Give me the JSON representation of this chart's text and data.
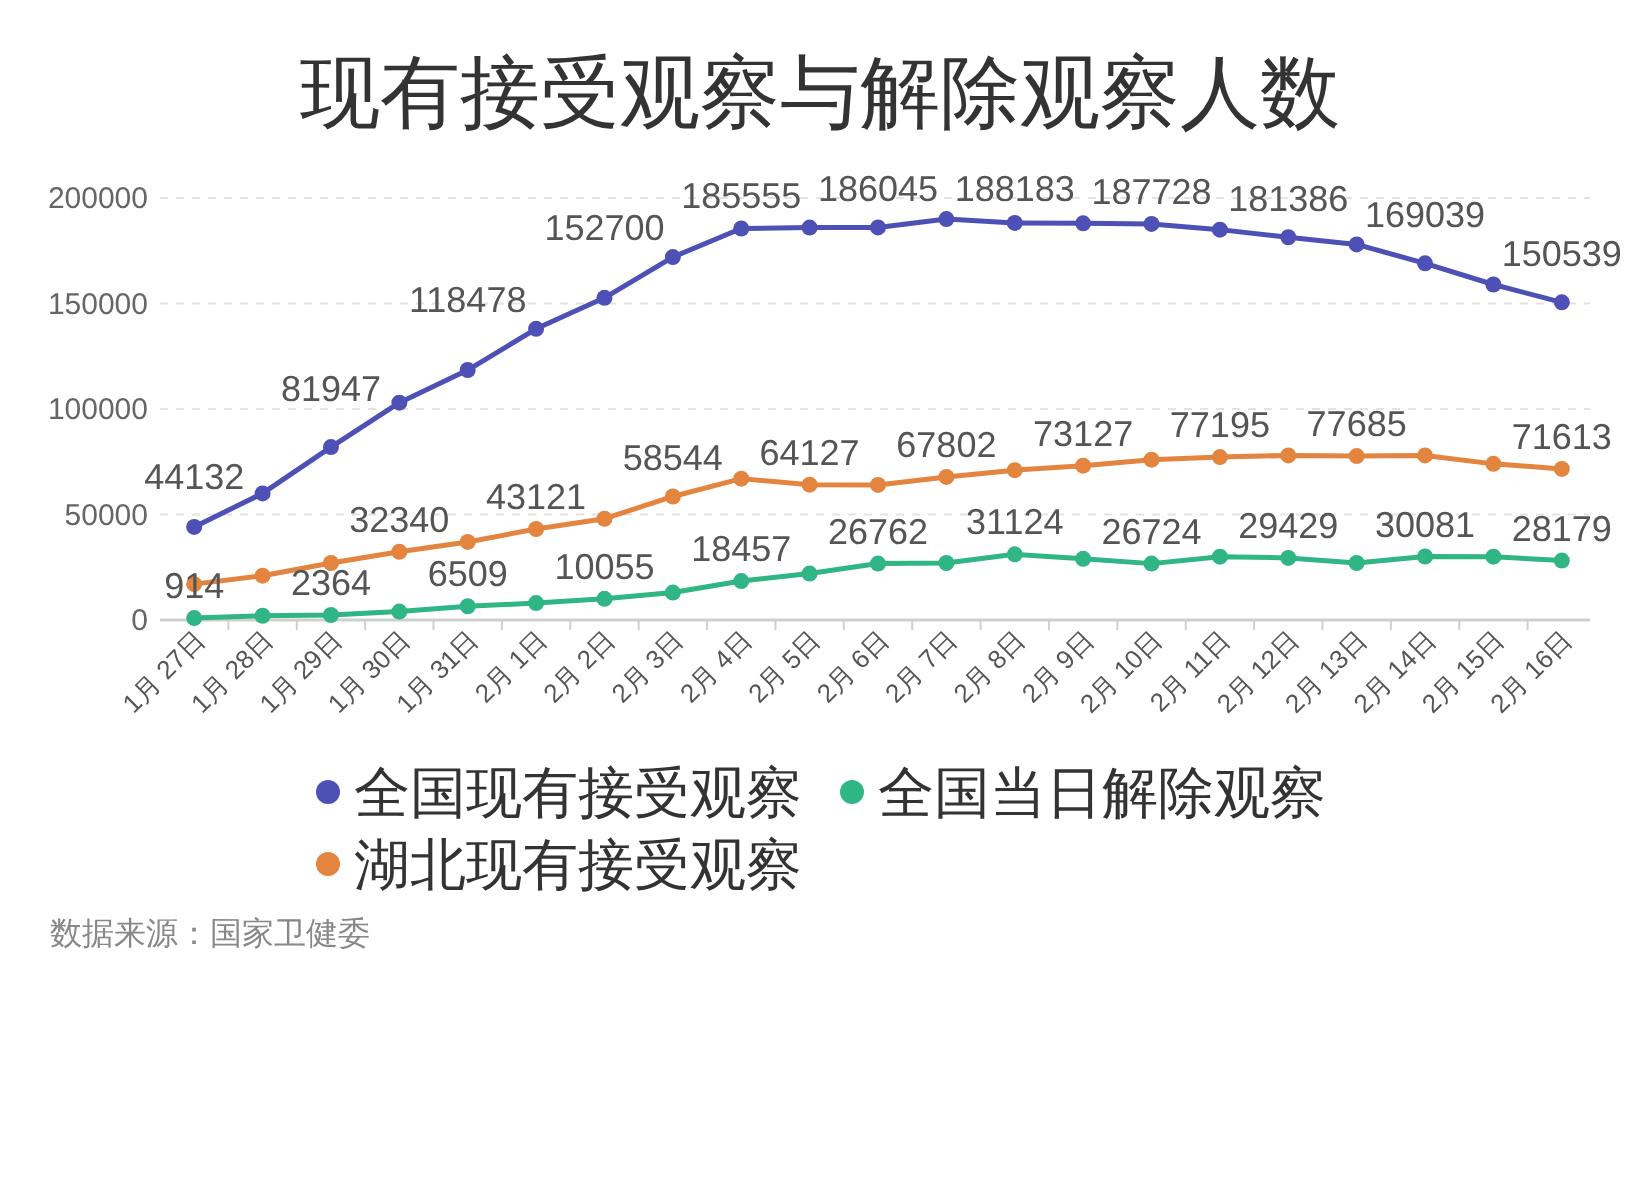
{
  "chart_data": {
    "type": "line",
    "title": "现有接受观察与解除观察人数",
    "categories": [
      "1月 27日",
      "1月 28日",
      "1月 29日",
      "1月 30日",
      "1月 31日",
      "2月 1日",
      "2月 2日",
      "2月 3日",
      "2月 4日",
      "2月 5日",
      "2月 6日",
      "2月 7日",
      "2月 8日",
      "2月 9日",
      "2月 10日",
      "2月 11日",
      "2月 12日",
      "2月 13日",
      "2月 14日",
      "2月 15日",
      "2月 16日"
    ],
    "series": [
      {
        "name": "全国现有接受观察",
        "color": "#4d50b5",
        "values": [
          44132,
          60000,
          81947,
          103000,
          118478,
          138000,
          152700,
          172000,
          185555,
          186000,
          186045,
          190000,
          188183,
          188000,
          187728,
          185000,
          181386,
          178000,
          169039,
          159000,
          150539
        ],
        "value_labels": [
          "44132",
          null,
          "81947",
          null,
          "118478",
          null,
          "152700",
          null,
          "185555",
          null,
          "186045",
          null,
          "188183",
          null,
          "187728",
          null,
          "181386",
          null,
          "169039",
          null,
          "150539"
        ]
      },
      {
        "name": "全国当日解除观察",
        "color": "#30b585",
        "values": [
          914,
          2000,
          2364,
          4000,
          6509,
          8000,
          10055,
          13000,
          18457,
          22000,
          26762,
          27000,
          31124,
          29000,
          26724,
          30000,
          29429,
          27000,
          30081,
          30000,
          28179
        ],
        "value_labels": [
          "914",
          null,
          "2364",
          null,
          "6509",
          null,
          "10055",
          null,
          "18457",
          null,
          "26762",
          null,
          "31124",
          null,
          "26724",
          null,
          "29429",
          null,
          "30081",
          null,
          "28179"
        ]
      },
      {
        "name": "湖北现有接受观察",
        "color": "#e3843f",
        "values": [
          17000,
          21000,
          27000,
          32340,
          37000,
          43121,
          48000,
          58544,
          67000,
          64127,
          64000,
          67802,
          71000,
          73127,
          76000,
          77195,
          78000,
          77685,
          78000,
          74000,
          71613
        ],
        "value_labels": [
          null,
          null,
          null,
          "32340",
          null,
          "43121",
          null,
          "58544",
          null,
          "64127",
          null,
          "67802",
          null,
          "73127",
          null,
          "77195",
          null,
          "77685",
          null,
          null,
          "71613"
        ]
      }
    ],
    "ylim": [
      0,
      200000
    ],
    "yticks": [
      0,
      50000,
      100000,
      150000,
      200000
    ],
    "grid": "y",
    "legend": "bottom",
    "marker": "circle",
    "line_style": "solid",
    "annotations": [
      "数据来源：国家卫健委"
    ]
  }
}
